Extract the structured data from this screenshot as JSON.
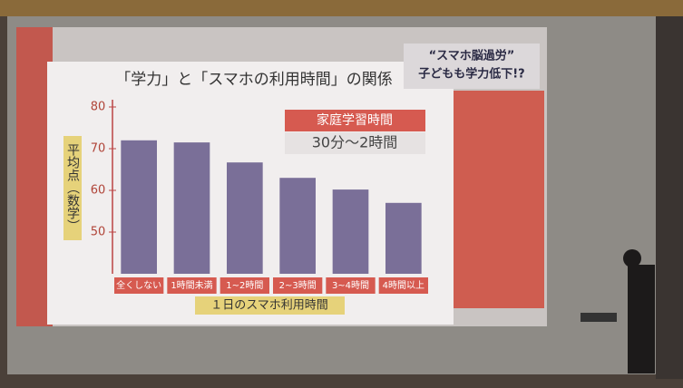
{
  "chart_data": {
    "type": "bar",
    "title": "「学力」と「スマホの利用時間」の関係",
    "y_label": "平均点（数学）",
    "x_label": "１日のスマホ利用時間",
    "categories": [
      "全くしない",
      "1時間未満",
      "1~2時間",
      "2~3時間",
      "3~4時間",
      "4時間以上"
    ],
    "values": [
      72,
      71.5,
      66.7,
      63,
      60.2,
      57
    ],
    "color": "#7a6f98",
    "ylim": [
      40,
      80
    ],
    "yticks": [
      50,
      60,
      70,
      80
    ],
    "annotations": [
      "家庭学習時間",
      "30分～2時間"
    ],
    "headline": [
      "“スマホ脳過労”",
      "子どもも学力低下!?"
    ]
  }
}
